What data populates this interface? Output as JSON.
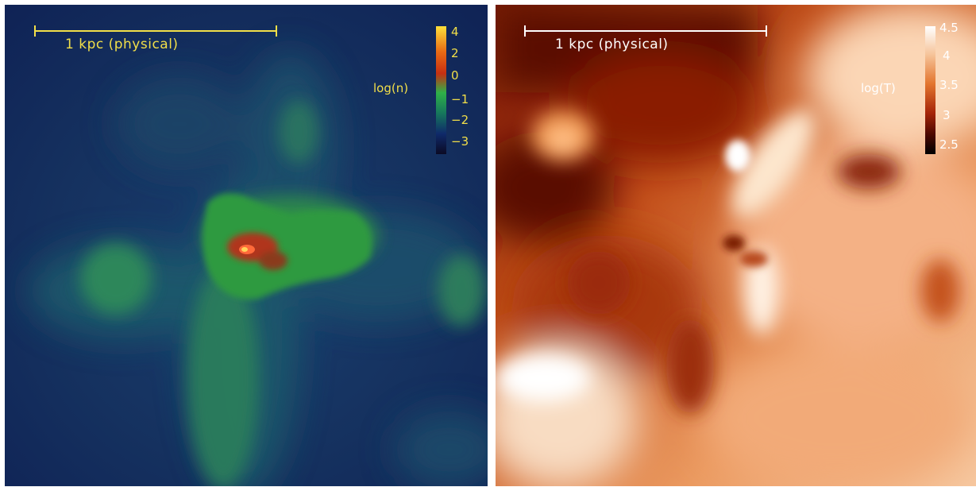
{
  "panels": {
    "density": {
      "scale_label": "1 kpc (physical)",
      "colorbar_label": "log(n)",
      "ticks": [
        "4",
        "2",
        "0",
        "−1",
        "−2",
        "−3"
      ],
      "colormap": [
        "#0b0a24",
        "#0f2a6a",
        "#18794a",
        "#2fb148",
        "#c62f12",
        "#ffe03a"
      ],
      "text_color": "#f2df49"
    },
    "temperature": {
      "scale_label": "1 kpc (physical)",
      "colorbar_label": "log(T)",
      "ticks": [
        "4.5",
        "4",
        "3.5",
        "3",
        "2.5"
      ],
      "colormap": [
        "#000000",
        "#6e0d00",
        "#c0420e",
        "#f29a5a",
        "#ffffff"
      ],
      "text_color": "#ffffff"
    }
  }
}
